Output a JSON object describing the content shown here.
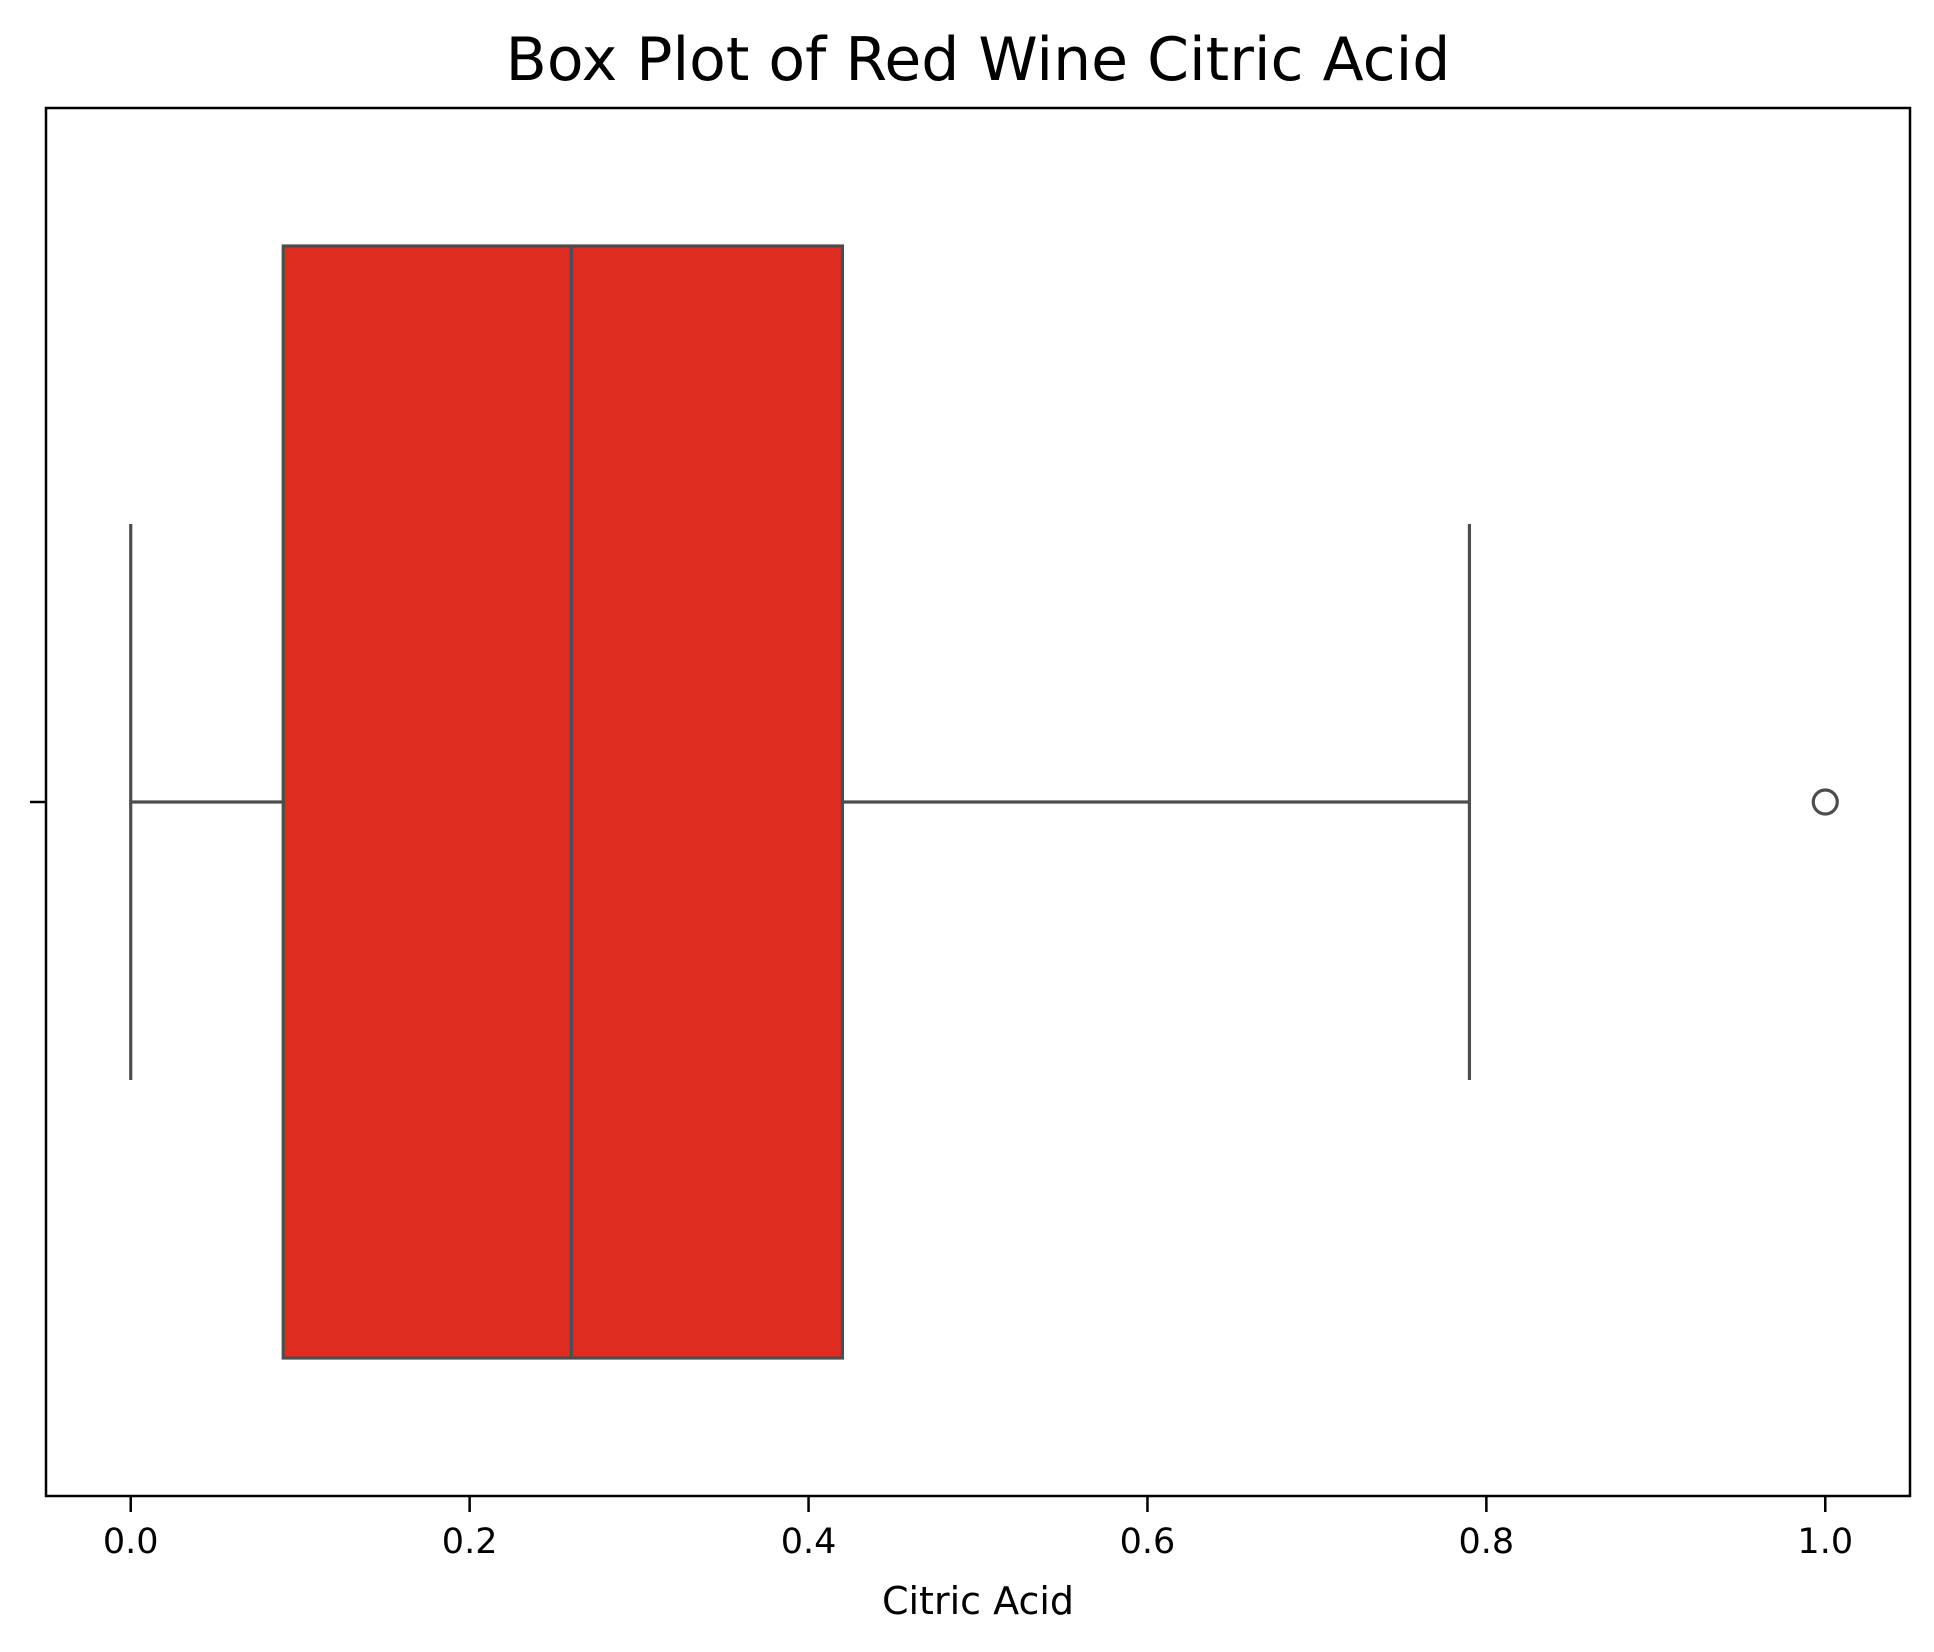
{
  "chart_data": {
    "type": "box",
    "title": "Box Plot of Red Wine Citric Acid",
    "xlabel": "Citric Acid",
    "ylabel": "",
    "xlim": [
      -0.05,
      1.05
    ],
    "xticks": [
      {
        "value": 0.0,
        "label": "0.0"
      },
      {
        "value": 0.2,
        "label": "0.2"
      },
      {
        "value": 0.4,
        "label": "0.4"
      },
      {
        "value": 0.6,
        "label": "0.6"
      },
      {
        "value": 0.8,
        "label": "0.8"
      },
      {
        "value": 1.0,
        "label": "1.0"
      }
    ],
    "orientation": "horizontal",
    "grid": false,
    "box": {
      "whisker_low": 0.0,
      "q1": 0.09,
      "median": 0.26,
      "q3": 0.42,
      "whisker_high": 0.79,
      "outliers": [
        1.0
      ]
    },
    "colors": {
      "box_fill": "#de2d20",
      "line": "#4d4d4d",
      "axes": "#000000"
    }
  }
}
